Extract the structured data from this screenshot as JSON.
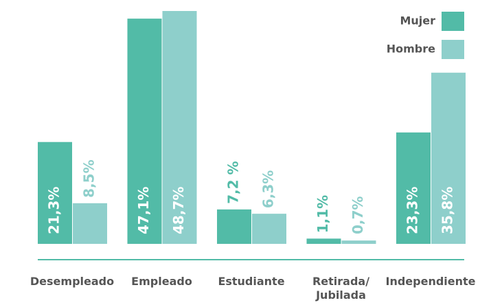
{
  "chart_data": {
    "type": "bar",
    "categories": [
      "Desempleado",
      "Empleado",
      "Estudiante",
      "Retirada/\nJubilada",
      "Independiente"
    ],
    "series": [
      {
        "name": "Mujer",
        "color": "#52bba7",
        "values": [
          21.3,
          47.1,
          7.2,
          1.1,
          23.3
        ],
        "value_labels": [
          "21,3%",
          "47,1%",
          "7,2 %",
          "1,1%",
          "23,3%"
        ]
      },
      {
        "name": "Hombre",
        "color": "#8ecfcb",
        "values": [
          8.5,
          48.7,
          6.3,
          0.7,
          35.8
        ],
        "value_labels": [
          "8,5%",
          "48,7%",
          "6,3%",
          "0,7%",
          "35,8%"
        ]
      }
    ],
    "legend": "top-right"
  }
}
